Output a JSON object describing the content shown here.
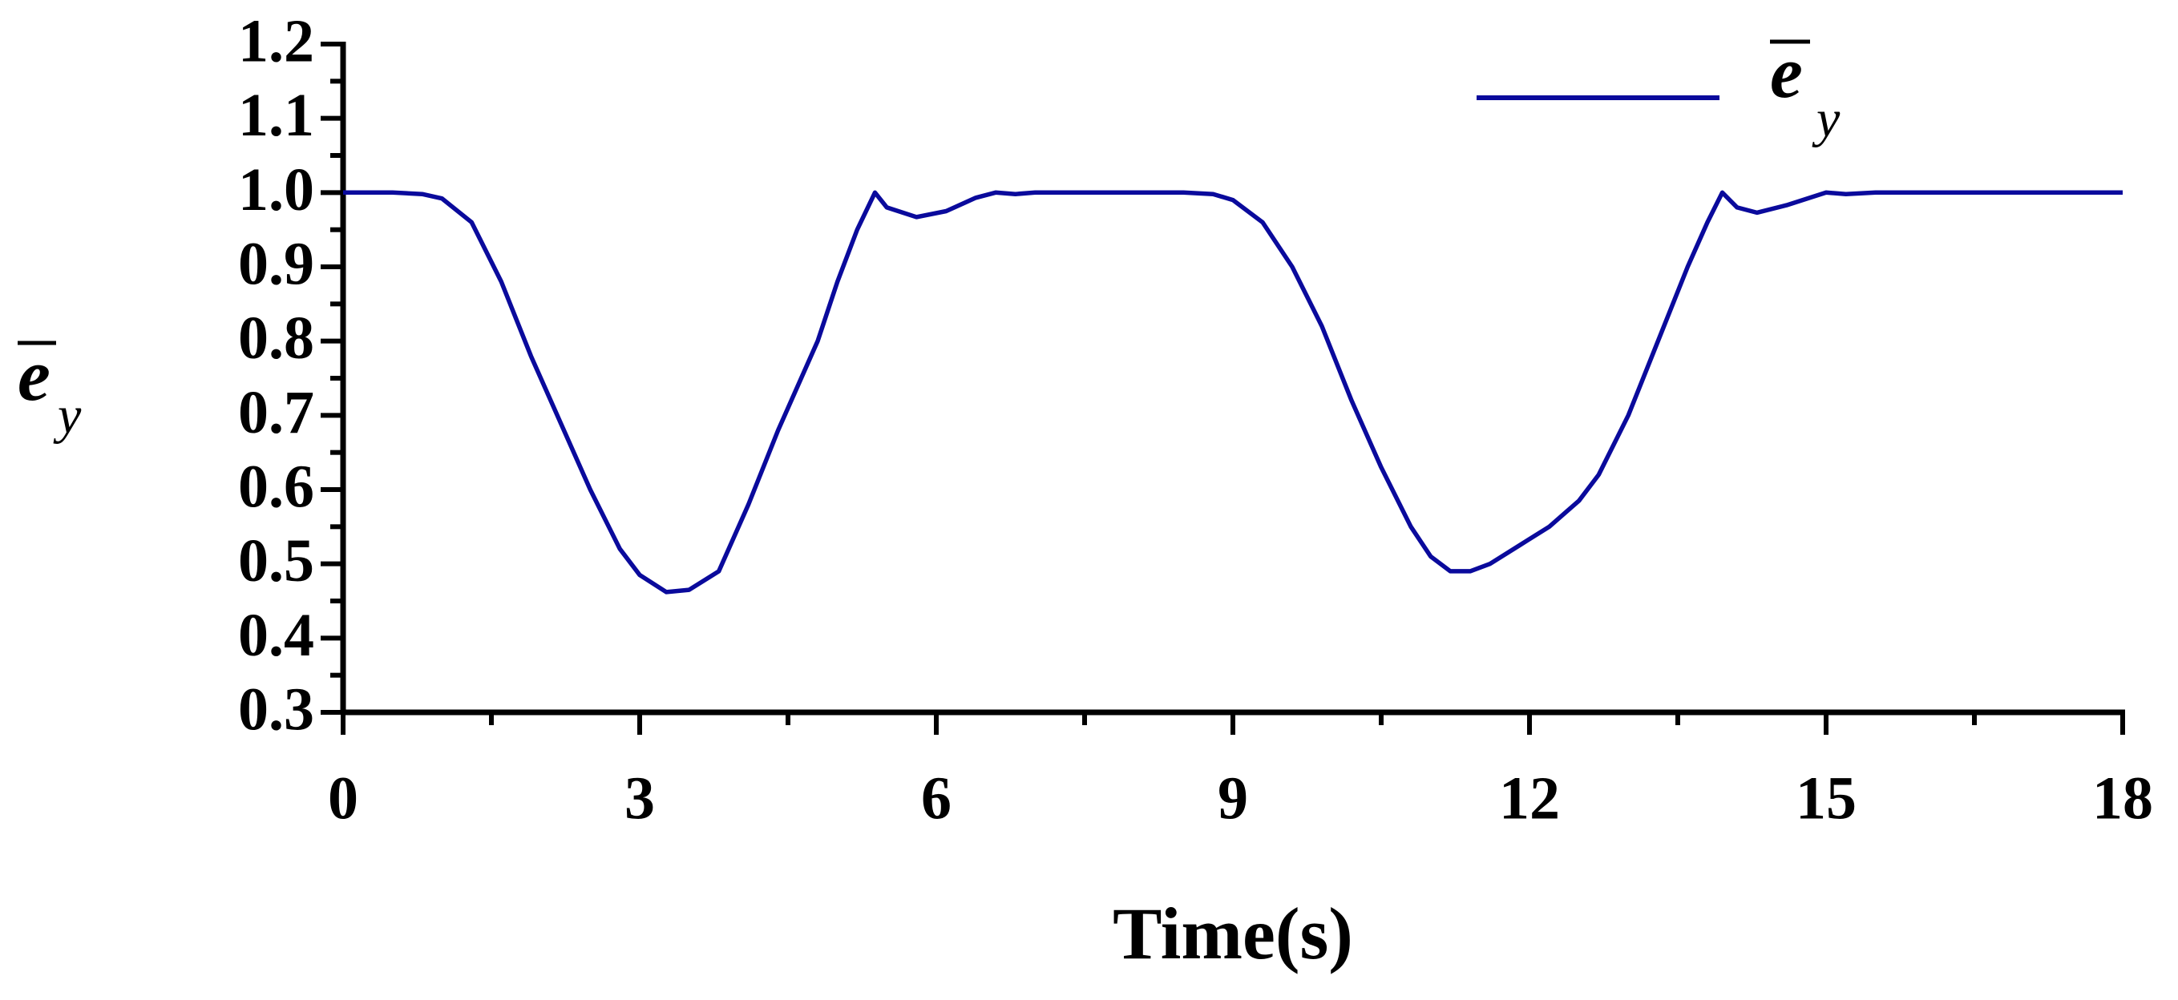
{
  "chart_data": {
    "type": "line",
    "xlabel": "Time(s)",
    "ylabel_main": "e",
    "ylabel_sub": "y",
    "x": [
      0,
      0.5,
      0.8,
      1.0,
      1.3,
      1.6,
      1.9,
      2.2,
      2.5,
      2.8,
      3.0,
      3.27,
      3.5,
      3.8,
      4.1,
      4.4,
      4.8,
      5.0,
      5.2,
      5.38,
      5.5,
      5.8,
      6.1,
      6.4,
      6.6,
      6.8,
      7.0,
      8.5,
      8.8,
      9.0,
      9.3,
      9.6,
      9.9,
      10.2,
      10.5,
      10.8,
      11.0,
      11.2,
      11.4,
      11.6,
      11.9,
      12.2,
      12.5,
      12.7,
      13.0,
      13.3,
      13.6,
      13.8,
      13.95,
      14.1,
      14.3,
      14.6,
      15.0,
      15.2,
      15.5,
      18
    ],
    "series": [
      {
        "name": "e",
        "name_sub": "y",
        "color": "#0a0a9c",
        "values": [
          1.0,
          1.0,
          0.998,
          0.992,
          0.96,
          0.88,
          0.78,
          0.69,
          0.6,
          0.52,
          0.485,
          0.462,
          0.465,
          0.49,
          0.58,
          0.68,
          0.8,
          0.88,
          0.95,
          1.0,
          0.98,
          0.967,
          0.975,
          0.993,
          1.0,
          0.998,
          1.0,
          1.0,
          0.998,
          0.99,
          0.96,
          0.9,
          0.82,
          0.72,
          0.63,
          0.55,
          0.51,
          0.49,
          0.49,
          0.5,
          0.525,
          0.55,
          0.585,
          0.62,
          0.7,
          0.8,
          0.9,
          0.96,
          1.0,
          0.98,
          0.973,
          0.983,
          1.0,
          0.998,
          1.0,
          1.0
        ]
      }
    ],
    "xlim": [
      0,
      18
    ],
    "xticks": [
      0,
      3,
      6,
      9,
      12,
      15,
      18
    ],
    "ylim": [
      0.3,
      1.2
    ],
    "yticks": [
      0.3,
      0.4,
      0.5,
      0.6,
      0.7,
      0.8,
      0.9,
      {
        "value": 1,
        "label": "1.0"
      },
      1.1,
      1.2
    ]
  }
}
